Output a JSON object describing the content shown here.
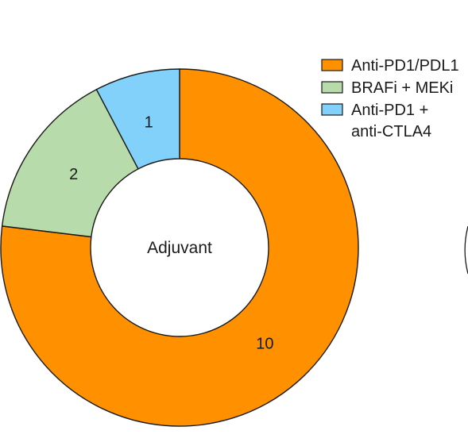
{
  "chart_data": {
    "type": "pie",
    "subtype": "donut",
    "center_label": "Adjuvant",
    "categories": [
      "Anti-PD1/PDL1",
      "BRAFi + MEKi",
      "Anti-PD1 + anti-CTLA4"
    ],
    "values": [
      10,
      2,
      1
    ],
    "colors": [
      "#FF9100",
      "#B7DBAA",
      "#82D1FA"
    ],
    "legend": [
      {
        "lines": [
          "Anti-PD1/PDL1"
        ],
        "color": "#FF9100"
      },
      {
        "lines": [
          "BRAFi + MEKi"
        ],
        "color": "#B7DBAA"
      },
      {
        "lines": [
          "Anti-PD1 +",
          "anti-CTLA4"
        ],
        "color": "#82D1FA"
      }
    ],
    "legend_position": "top-right",
    "title": "",
    "start": "top",
    "direction": "clockwise"
  }
}
